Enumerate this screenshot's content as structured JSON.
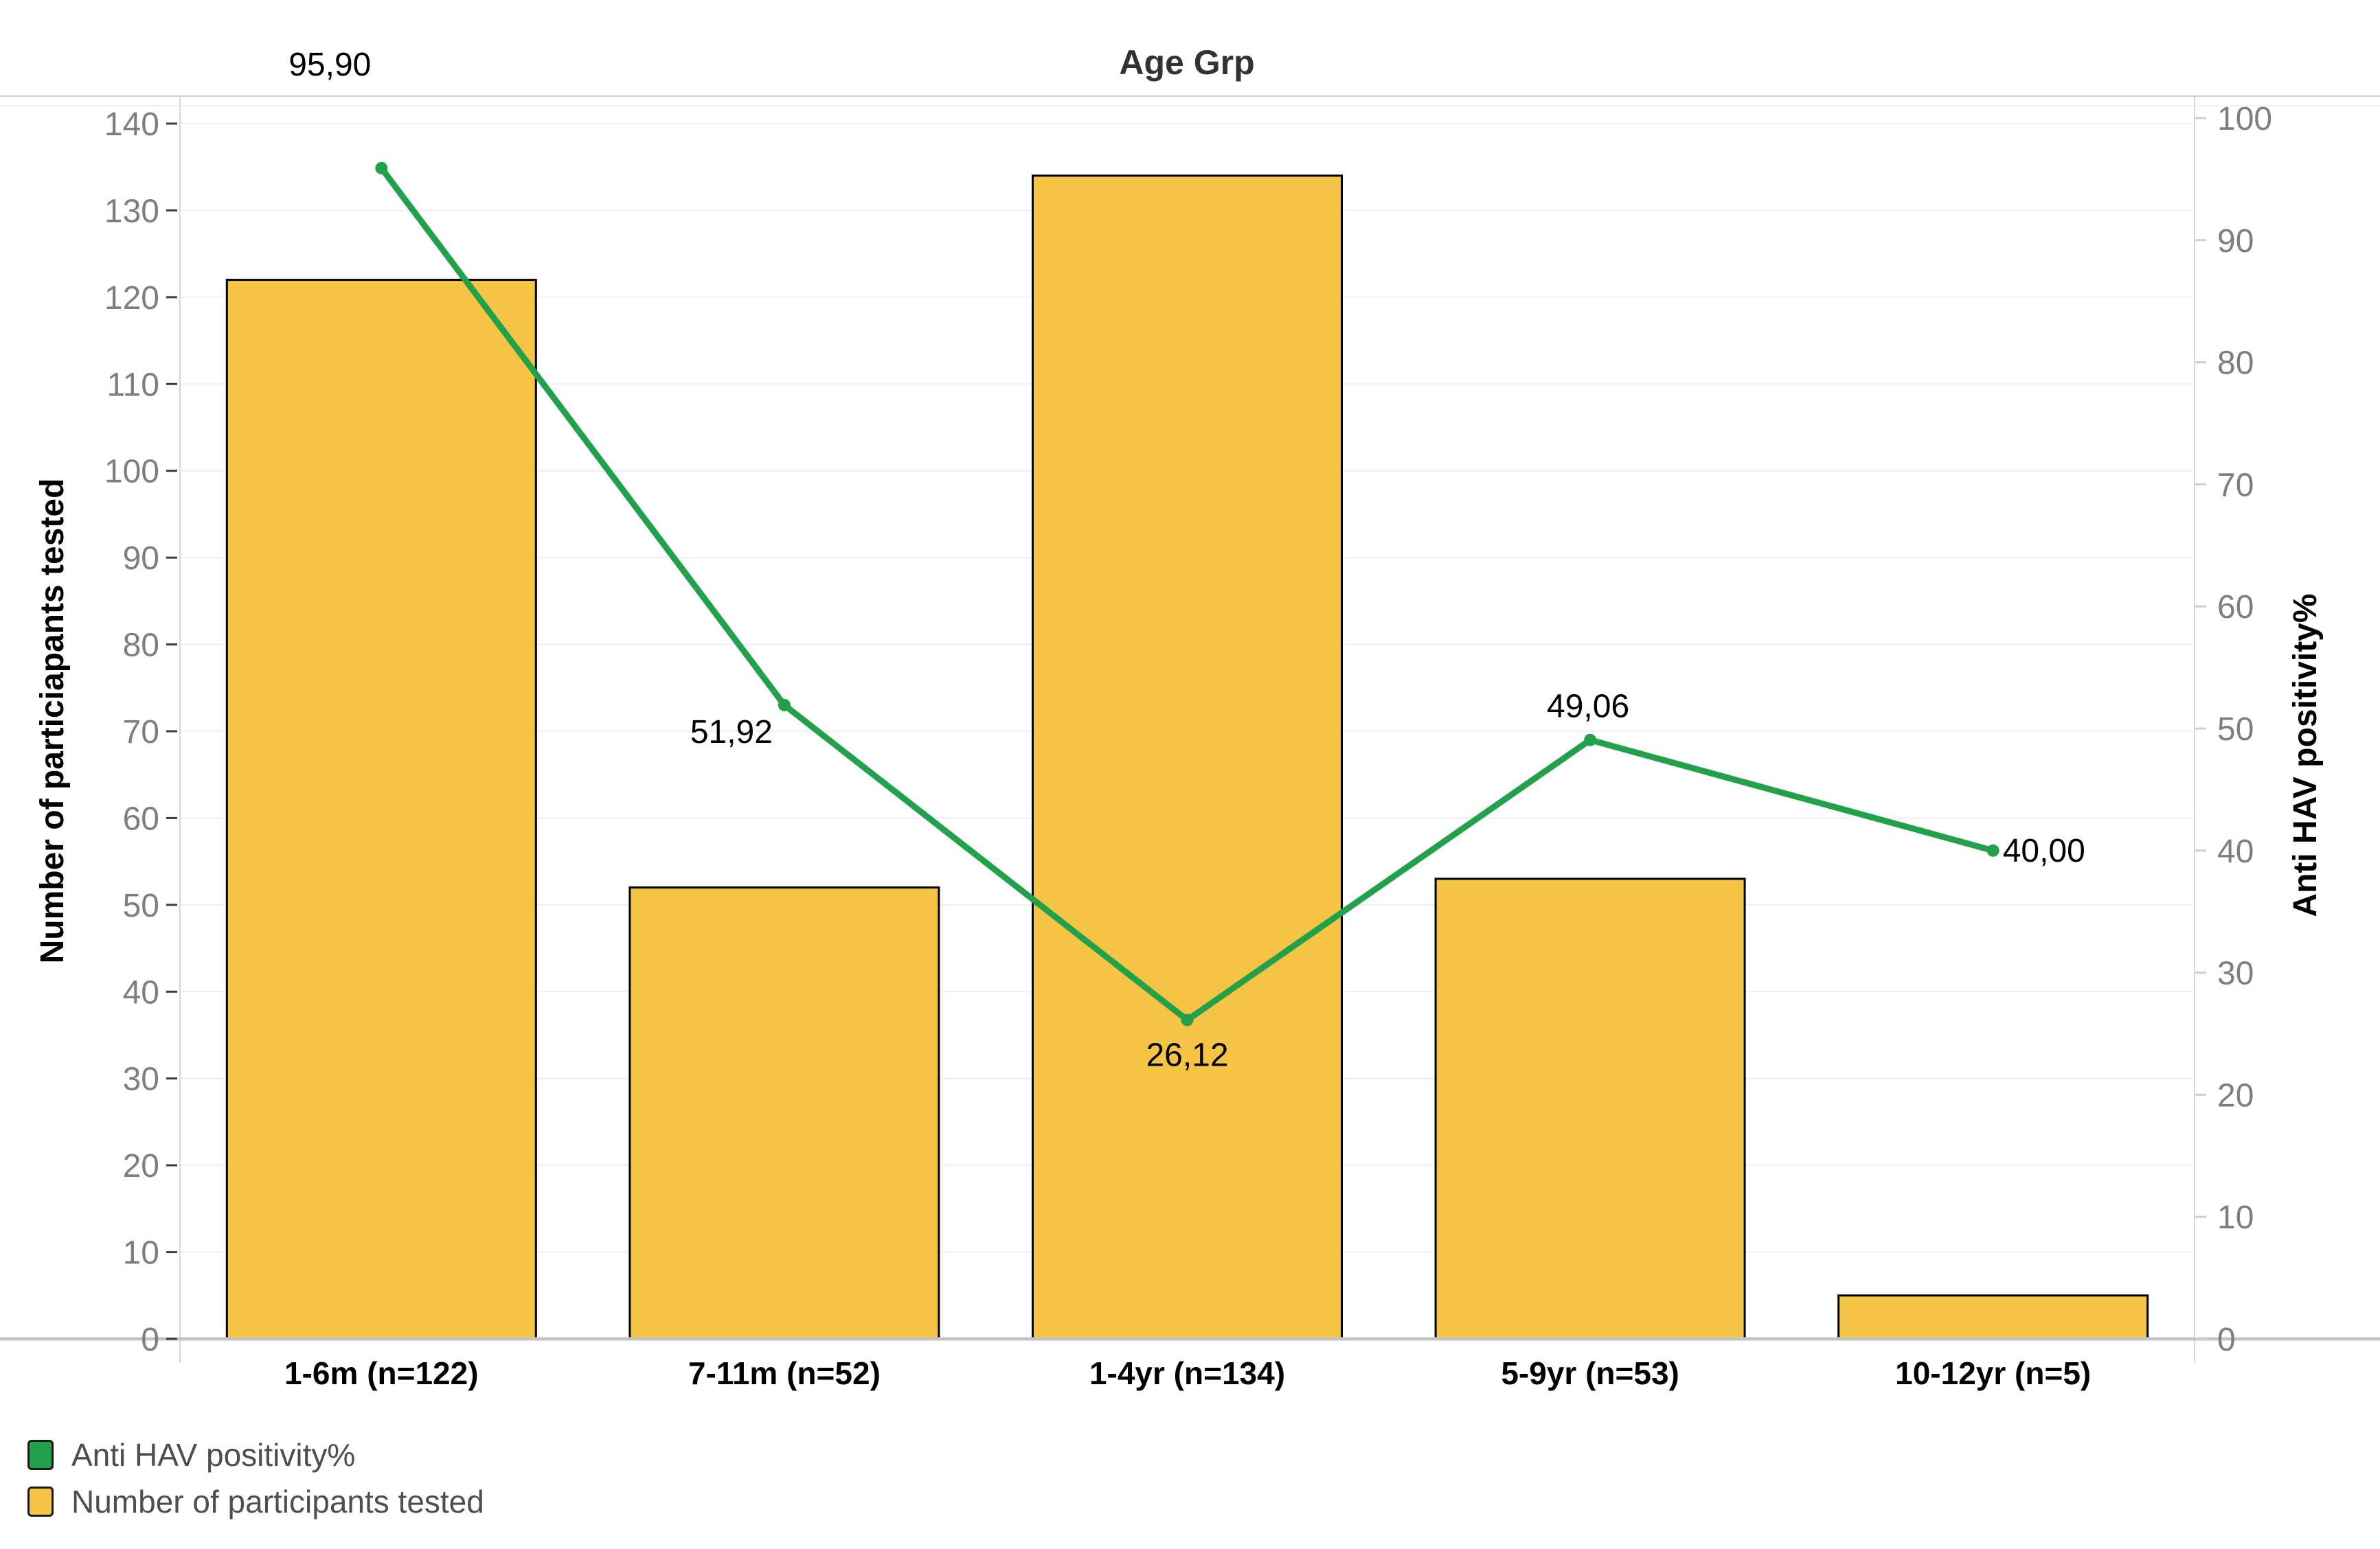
{
  "chart_data": {
    "type": "bar",
    "title": "Age Grp",
    "categories": [
      "1-6m (n=122)",
      "7-11m (n=52)",
      "1-4yr (n=134)",
      "5-9yr (n=53)",
      "10-12yr (n=5)"
    ],
    "series": [
      {
        "name": "Number of participants tested",
        "chart_type": "bar",
        "axis": "left",
        "values": [
          122,
          52,
          134,
          53,
          5
        ],
        "color": "#F6C445",
        "border_color": "#000000"
      },
      {
        "name": "Anti HAV positivity%",
        "chart_type": "line",
        "axis": "right",
        "values": [
          95.9,
          51.92,
          26.12,
          49.06,
          40.0
        ],
        "labels": [
          "95,90",
          "51,92",
          "26,12",
          "49,06",
          "40,00"
        ],
        "label_placement": [
          "above-left",
          "left",
          "below",
          "above",
          "right"
        ],
        "color": "#22A14B"
      }
    ],
    "left_axis": {
      "label": "Number of particiapants tested",
      "min": 0,
      "max": 140,
      "tick_step": 10,
      "ticks": [
        "0",
        "10",
        "20",
        "30",
        "40",
        "50",
        "60",
        "70",
        "80",
        "90",
        "100",
        "110",
        "120",
        "130",
        "140"
      ]
    },
    "right_axis": {
      "label": "Anti HAV positivity%",
      "min": 0,
      "max": 100,
      "tick_step": 10,
      "ticks": [
        "0",
        "10",
        "20",
        "30",
        "40",
        "50",
        "60",
        "70",
        "80",
        "90",
        "100"
      ]
    },
    "grid": true,
    "legend_position": "bottom-left"
  },
  "legend": {
    "items": [
      {
        "label": "Anti HAV positivity%",
        "color": "#22A14B",
        "border": "#000000"
      },
      {
        "label": "Number of participants tested",
        "color": "#F6C445",
        "border": "#000000"
      }
    ]
  },
  "colors": {
    "grid_line": "#EFEFEF",
    "axis_line": "#D8D8D8",
    "bottom_axis_line": "#C4C4C4",
    "top_border_line": "#CFCFCF",
    "left_tick": "#3C3C3C",
    "right_tick": "#CFCFCF",
    "tick_label": "#7E7E7E",
    "title_text": "#323232",
    "legend_text": "#4E4E4E"
  }
}
